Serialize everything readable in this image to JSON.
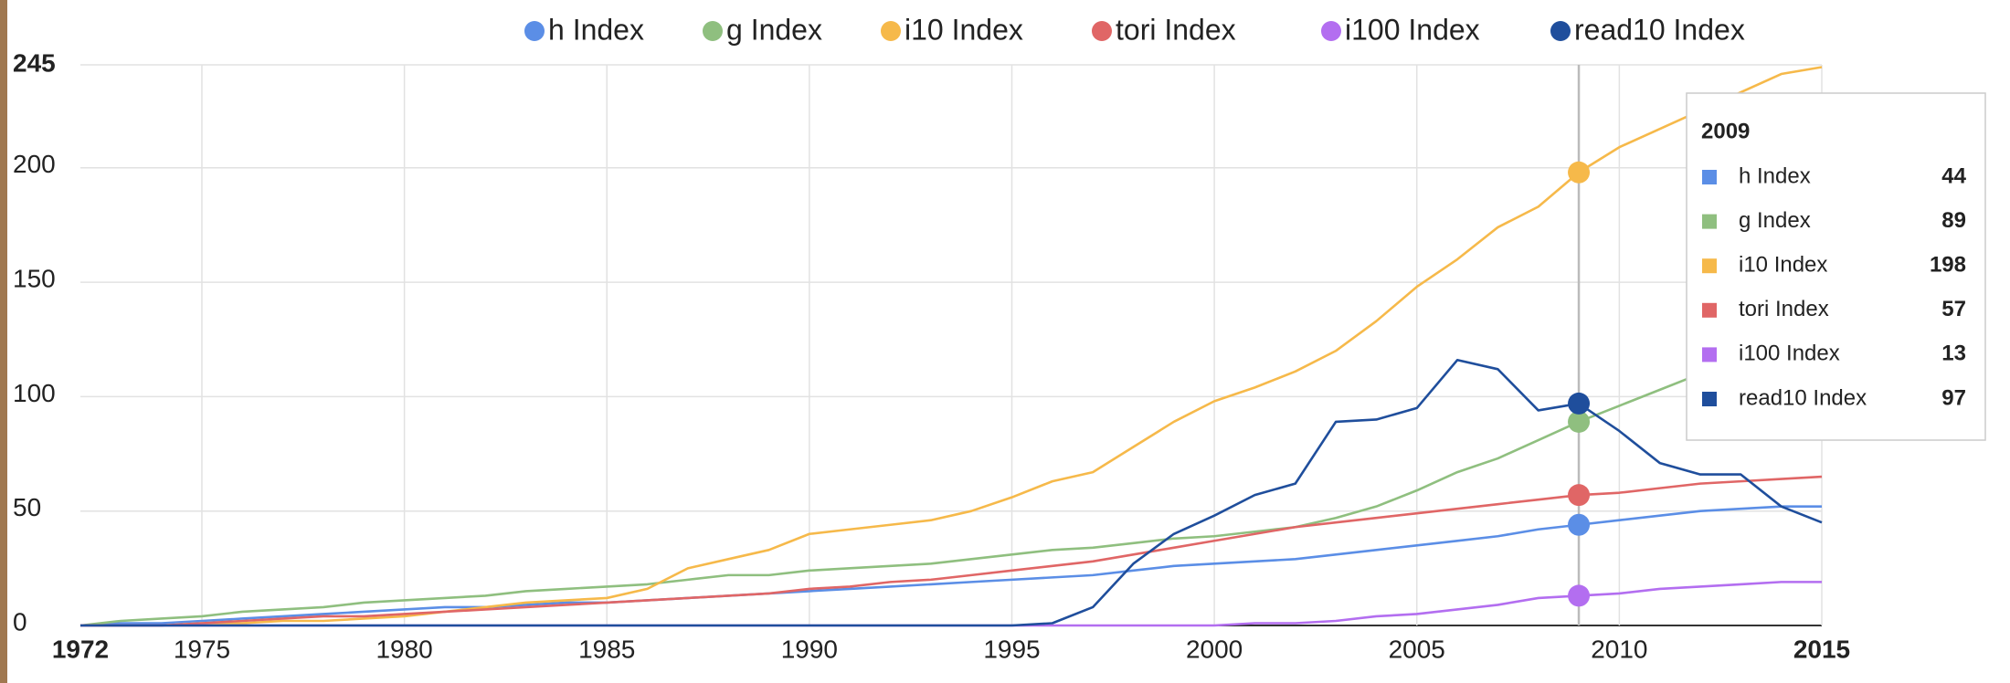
{
  "chart_data": {
    "type": "line",
    "x": [
      1972,
      1973,
      1974,
      1975,
      1976,
      1977,
      1978,
      1979,
      1980,
      1981,
      1982,
      1983,
      1984,
      1985,
      1986,
      1987,
      1988,
      1989,
      1990,
      1991,
      1992,
      1993,
      1994,
      1995,
      1996,
      1997,
      1998,
      1999,
      2000,
      2001,
      2002,
      2003,
      2004,
      2005,
      2006,
      2007,
      2008,
      2009,
      2010,
      2011,
      2012,
      2013,
      2014,
      2015
    ],
    "series": [
      {
        "name": "h Index",
        "color": "#5b8ee6",
        "values": [
          0,
          1,
          1,
          2,
          3,
          4,
          5,
          6,
          7,
          8,
          8,
          9,
          10,
          10,
          11,
          12,
          13,
          14,
          15,
          16,
          17,
          18,
          19,
          20,
          21,
          22,
          24,
          26,
          27,
          28,
          29,
          31,
          33,
          35,
          37,
          39,
          42,
          44,
          46,
          48,
          50,
          51,
          52,
          52
        ]
      },
      {
        "name": "g Index",
        "color": "#8fbf7f",
        "values": [
          0,
          2,
          3,
          4,
          6,
          7,
          8,
          10,
          11,
          12,
          13,
          15,
          16,
          17,
          18,
          20,
          22,
          22,
          24,
          25,
          26,
          27,
          29,
          31,
          33,
          34,
          36,
          38,
          39,
          41,
          43,
          47,
          52,
          59,
          67,
          73,
          81,
          89,
          96,
          103,
          110,
          117,
          124,
          130
        ]
      },
      {
        "name": "i10 Index",
        "color": "#f6b94a",
        "values": [
          0,
          0,
          0,
          1,
          1,
          2,
          2,
          3,
          4,
          6,
          8,
          10,
          11,
          12,
          16,
          25,
          29,
          33,
          40,
          42,
          44,
          46,
          50,
          56,
          63,
          67,
          78,
          89,
          98,
          104,
          111,
          120,
          133,
          148,
          160,
          174,
          183,
          198,
          209,
          217,
          225,
          233,
          241,
          244
        ]
      },
      {
        "name": "tori Index",
        "color": "#e06666",
        "values": [
          0,
          0,
          0,
          1,
          2,
          3,
          4,
          4,
          5,
          6,
          7,
          8,
          9,
          10,
          11,
          12,
          13,
          14,
          16,
          17,
          19,
          20,
          22,
          24,
          26,
          28,
          31,
          34,
          37,
          40,
          43,
          45,
          47,
          49,
          51,
          53,
          55,
          57,
          58,
          60,
          62,
          63,
          64,
          65
        ]
      },
      {
        "name": "i100 Index",
        "color": "#b36ef0",
        "values": [
          0,
          0,
          0,
          0,
          0,
          0,
          0,
          0,
          0,
          0,
          0,
          0,
          0,
          0,
          0,
          0,
          0,
          0,
          0,
          0,
          0,
          0,
          0,
          0,
          0,
          0,
          0,
          0,
          0,
          1,
          1,
          2,
          4,
          5,
          7,
          9,
          12,
          13,
          14,
          16,
          17,
          18,
          19,
          19
        ]
      },
      {
        "name": "read10 Index",
        "color": "#1f4e9c",
        "values": [
          0,
          0,
          0,
          0,
          0,
          0,
          0,
          0,
          0,
          0,
          0,
          0,
          0,
          0,
          0,
          0,
          0,
          0,
          0,
          0,
          0,
          0,
          0,
          0,
          1,
          8,
          27,
          40,
          48,
          57,
          62,
          89,
          90,
          95,
          116,
          112,
          94,
          97,
          85,
          71,
          66,
          66,
          52,
          45
        ]
      }
    ],
    "xlim": [
      1972,
      2015
    ],
    "xticks": [
      1972,
      1975,
      1980,
      1985,
      1990,
      1995,
      2000,
      2005,
      2010,
      2015
    ],
    "ylim": [
      0,
      245
    ],
    "yticks": [
      0,
      50,
      100,
      150,
      200,
      245
    ],
    "grid": true,
    "legend": "top",
    "tooltip": {
      "x": 2009
    }
  }
}
